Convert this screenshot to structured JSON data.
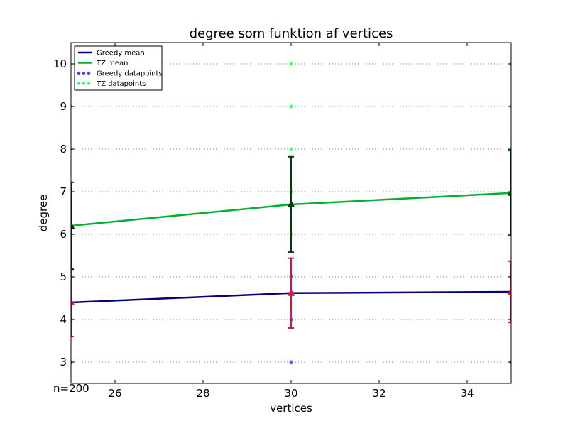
{
  "chart_data": {
    "type": "line",
    "title": "degree som funktion af vertices",
    "xlabel": "vertices",
    "ylabel": "degree",
    "xlim": [
      25,
      35
    ],
    "ylim": [
      2.5,
      10.5
    ],
    "xticks": [
      26,
      28,
      30,
      32,
      34
    ],
    "yticks": [
      3,
      4,
      5,
      6,
      7,
      8,
      9,
      10
    ],
    "grid": "horizontal dotted",
    "legend_position": "top-left",
    "annotation": "n=200",
    "series": [
      {
        "name": "Greedy mean",
        "color": "#000080",
        "x": [
          25,
          30,
          35
        ],
        "y": [
          4.4,
          4.62,
          4.65
        ],
        "errorbar": [
          0.8,
          0.82,
          0.72
        ],
        "errorbar_color": "#dc143c"
      },
      {
        "name": "TZ mean",
        "color": "#00b030",
        "x": [
          25,
          30,
          35
        ],
        "y": [
          6.2,
          6.7,
          6.97
        ],
        "errorbar": [
          1.02,
          1.12,
          1.0
        ],
        "errorbar_color": "#003b0f"
      }
    ],
    "scatter": [
      {
        "name": "Greedy datapoints",
        "color": "#4040ff",
        "points": [
          [
            25,
            3
          ],
          [
            25,
            4
          ],
          [
            25,
            5
          ],
          [
            30,
            3
          ],
          [
            30,
            4
          ],
          [
            30,
            5
          ],
          [
            35,
            3
          ],
          [
            35,
            4
          ],
          [
            35,
            5
          ]
        ]
      },
      {
        "name": "TZ datapoints",
        "color": "#33ff55",
        "points": [
          [
            25,
            5
          ],
          [
            25,
            6
          ],
          [
            25,
            7
          ],
          [
            25,
            8
          ],
          [
            25,
            9
          ],
          [
            30,
            6
          ],
          [
            30,
            7
          ],
          [
            30,
            8
          ],
          [
            30,
            9
          ],
          [
            30,
            10
          ],
          [
            35,
            6
          ],
          [
            35,
            7
          ],
          [
            35,
            8
          ],
          [
            35,
            9
          ],
          [
            35,
            10
          ]
        ]
      }
    ]
  }
}
